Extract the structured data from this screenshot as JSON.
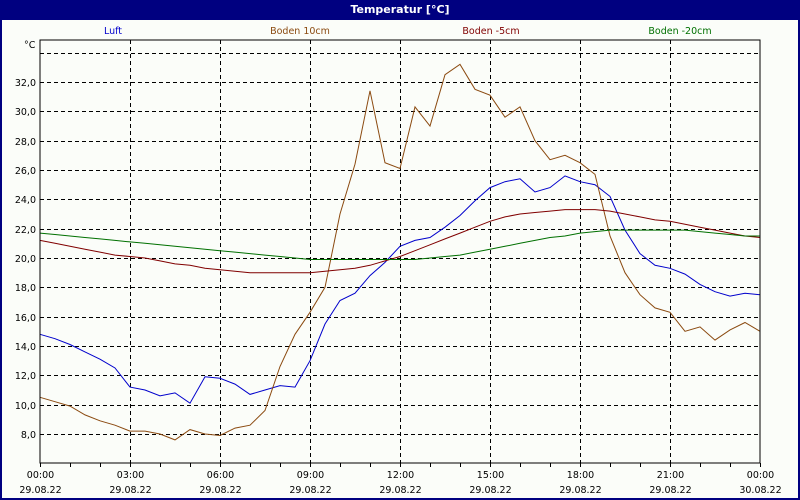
{
  "window": {
    "title": "Temperatur [°C]",
    "titlebar_color": "#000080",
    "background": "#fbfdf9"
  },
  "legend": [
    {
      "label": "Luft",
      "color": "#0000cc"
    },
    {
      "label": "Boden 10cm",
      "color": "#8b4a10"
    },
    {
      "label": "Boden -5cm",
      "color": "#800000"
    },
    {
      "label": "Boden -20cm",
      "color": "#007000"
    }
  ],
  "axes": {
    "y_unit": "°C",
    "y_ticks": [
      "8,0",
      "10,0",
      "12,0",
      "14,0",
      "16,0",
      "18,0",
      "20,0",
      "22,0",
      "24,0",
      "26,0",
      "28,0",
      "30,0",
      "32,0"
    ],
    "x_ticks": [
      {
        "time": "00:00",
        "date": "29.08.22"
      },
      {
        "time": "03:00",
        "date": "29.08.22"
      },
      {
        "time": "06:00",
        "date": "29.08.22"
      },
      {
        "time": "09:00",
        "date": "29.08.22"
      },
      {
        "time": "12:00",
        "date": "29.08.22"
      },
      {
        "time": "15:00",
        "date": "29.08.22"
      },
      {
        "time": "18:00",
        "date": "29.08.22"
      },
      {
        "time": "21:00",
        "date": "29.08.22"
      },
      {
        "time": "00:00",
        "date": "30.08.22"
      }
    ]
  },
  "chart_data": {
    "type": "line",
    "title": "Temperatur [°C]",
    "xlabel": "",
    "ylabel": "°C",
    "ylim": [
      6.0,
      34.0
    ],
    "xlim_hours": [
      0,
      24
    ],
    "grid": true,
    "legend_position": "top",
    "x_hours": [
      0,
      0.5,
      1,
      1.5,
      2,
      2.5,
      3,
      3.5,
      4,
      4.5,
      5,
      5.5,
      6,
      6.5,
      7,
      7.5,
      8,
      8.5,
      9,
      9.5,
      10,
      10.5,
      11,
      11.5,
      12,
      12.5,
      13,
      13.5,
      14,
      14.5,
      15,
      15.5,
      16,
      16.5,
      17,
      17.5,
      18,
      18.5,
      19,
      19.5,
      20,
      20.5,
      21,
      21.5,
      22,
      22.5,
      23,
      23.5,
      24
    ],
    "series": [
      {
        "name": "Luft",
        "color": "#0000cc",
        "values": [
          14.8,
          14.5,
          14.1,
          13.6,
          13.1,
          12.5,
          11.2,
          11.0,
          10.6,
          10.8,
          10.1,
          11.9,
          11.8,
          11.4,
          10.7,
          11.0,
          11.3,
          11.2,
          13.0,
          15.5,
          17.1,
          17.6,
          18.8,
          19.7,
          20.8,
          21.2,
          21.4,
          22.1,
          22.9,
          23.9,
          24.8,
          25.2,
          25.4,
          24.5,
          24.8,
          25.6,
          25.2,
          25.0,
          24.2,
          21.9,
          20.3,
          19.5,
          19.3,
          18.9,
          18.2,
          17.7,
          17.4,
          17.6,
          17.5
        ]
      },
      {
        "name": "Boden 10cm",
        "color": "#8b4a10",
        "values": [
          10.5,
          10.2,
          9.9,
          9.3,
          8.9,
          8.6,
          8.2,
          8.2,
          8.0,
          7.6,
          8.3,
          8.0,
          7.9,
          8.4,
          8.6,
          9.6,
          12.6,
          14.8,
          16.3,
          18.0,
          23.0,
          26.4,
          31.4,
          26.5,
          26.1,
          30.3,
          29.0,
          32.5,
          33.2,
          31.5,
          31.1,
          29.6,
          30.3,
          28.0,
          26.7,
          27.0,
          26.5,
          25.7,
          21.5,
          19.0,
          17.5,
          16.6,
          16.3,
          15.0,
          15.3,
          14.4,
          15.1,
          15.6,
          15.0
        ]
      },
      {
        "name": "Boden -5cm",
        "color": "#800000",
        "values": [
          21.2,
          21.0,
          20.8,
          20.6,
          20.4,
          20.2,
          20.1,
          20.0,
          19.8,
          19.6,
          19.5,
          19.3,
          19.2,
          19.1,
          19.0,
          19.0,
          19.0,
          19.0,
          19.0,
          19.1,
          19.2,
          19.3,
          19.5,
          19.8,
          20.1,
          20.5,
          20.9,
          21.3,
          21.7,
          22.1,
          22.5,
          22.8,
          23.0,
          23.1,
          23.2,
          23.3,
          23.3,
          23.3,
          23.2,
          23.0,
          22.8,
          22.6,
          22.5,
          22.3,
          22.1,
          21.9,
          21.7,
          21.5,
          21.4
        ]
      },
      {
        "name": "Boden -20cm",
        "color": "#007000",
        "values": [
          21.7,
          21.6,
          21.5,
          21.4,
          21.3,
          21.2,
          21.1,
          21.0,
          20.9,
          20.8,
          20.7,
          20.6,
          20.5,
          20.4,
          20.3,
          20.2,
          20.1,
          20.0,
          19.9,
          19.9,
          19.9,
          19.9,
          19.9,
          19.9,
          19.9,
          19.9,
          20.0,
          20.1,
          20.2,
          20.4,
          20.6,
          20.8,
          21.0,
          21.2,
          21.4,
          21.5,
          21.7,
          21.8,
          21.9,
          21.9,
          21.9,
          21.9,
          21.9,
          21.9,
          21.8,
          21.7,
          21.6,
          21.5,
          21.5
        ]
      }
    ]
  }
}
